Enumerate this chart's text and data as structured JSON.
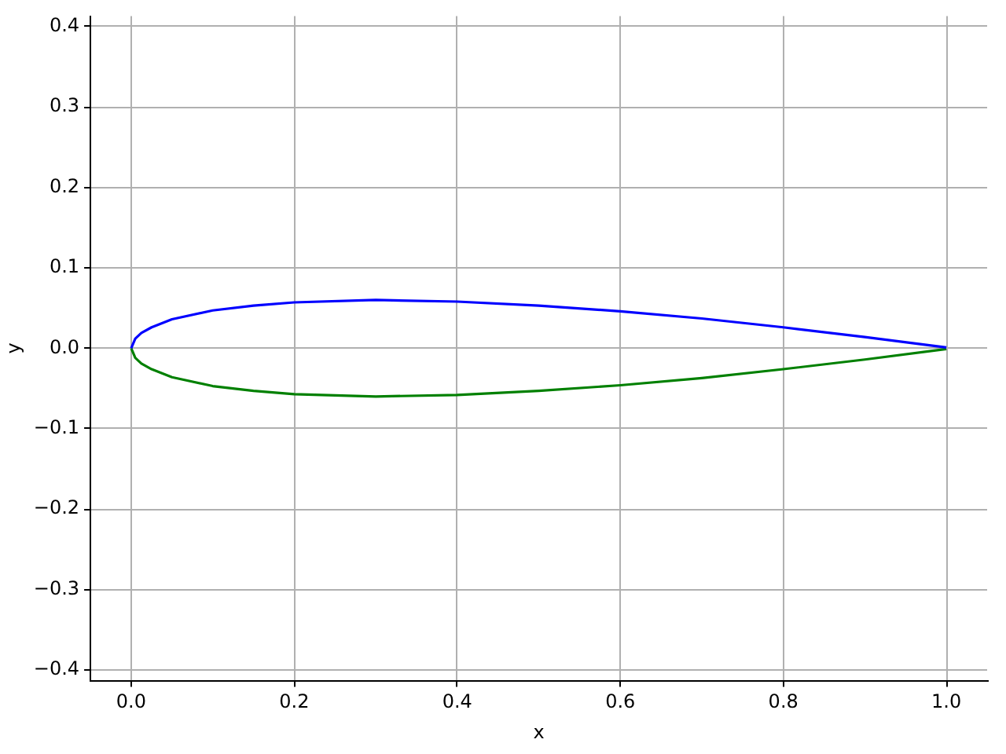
{
  "chart_data": {
    "type": "line",
    "xlabel": "x",
    "ylabel": "y",
    "xlim": [
      -0.05,
      1.05
    ],
    "ylim": [
      -0.413,
      0.413
    ],
    "xticks": [
      {
        "value": 0,
        "label": "0.0"
      },
      {
        "value": 0.2,
        "label": "0.2"
      },
      {
        "value": 0.4,
        "label": "0.4"
      },
      {
        "value": 0.6,
        "label": "0.6"
      },
      {
        "value": 0.8,
        "label": "0.8"
      },
      {
        "value": 1,
        "label": "1.0"
      }
    ],
    "yticks": [
      {
        "value": -0.4,
        "label": "−0.4"
      },
      {
        "value": -0.3,
        "label": "−0.3"
      },
      {
        "value": -0.2,
        "label": "−0.2"
      },
      {
        "value": -0.1,
        "label": "−0.1"
      },
      {
        "value": 0,
        "label": "0.0"
      },
      {
        "value": 0.1,
        "label": "0.1"
      },
      {
        "value": 0.2,
        "label": "0.2"
      },
      {
        "value": 0.3,
        "label": "0.3"
      },
      {
        "value": 0.4,
        "label": "0.4"
      }
    ],
    "grid": true,
    "marker": "none",
    "line_style": "solid",
    "series": [
      {
        "color": "#0000ff",
        "x": [
          0,
          0.005,
          0.0125,
          0.025,
          0.05,
          0.1,
          0.15,
          0.2,
          0.3,
          0.4,
          0.5,
          0.6,
          0.7,
          0.8,
          0.9,
          1.0
        ],
        "values": [
          0,
          0.012,
          0.019,
          0.026,
          0.036,
          0.047,
          0.053,
          0.057,
          0.06,
          0.058,
          0.053,
          0.046,
          0.037,
          0.026,
          0.014,
          0.001
        ]
      },
      {
        "color": "#008000",
        "x": [
          0,
          0.005,
          0.0125,
          0.025,
          0.05,
          0.1,
          0.15,
          0.2,
          0.3,
          0.4,
          0.5,
          0.6,
          0.7,
          0.8,
          0.9,
          1.0
        ],
        "values": [
          0,
          -0.012,
          -0.019,
          -0.026,
          -0.036,
          -0.047,
          -0.053,
          -0.057,
          -0.06,
          -0.058,
          -0.053,
          -0.046,
          -0.037,
          -0.026,
          -0.014,
          -0.001
        ]
      }
    ]
  }
}
